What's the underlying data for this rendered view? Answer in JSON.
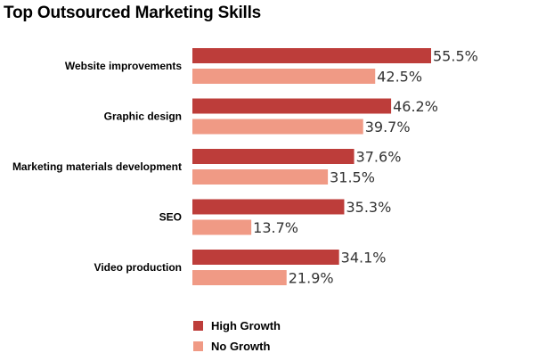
{
  "chart_data": {
    "type": "bar",
    "orientation": "horizontal",
    "title": "Top Outsourced Marketing Skills",
    "categories": [
      "Website improvements",
      "Graphic design",
      "Marketing materials development",
      "SEO",
      "Video production"
    ],
    "series": [
      {
        "name": "High Growth",
        "values": [
          55.5,
          46.2,
          37.6,
          35.3,
          34.1
        ],
        "color": "#bd3d3a"
      },
      {
        "name": "No Growth",
        "values": [
          42.5,
          39.7,
          31.5,
          13.7,
          21.9
        ],
        "color": "#f09a85"
      }
    ],
    "value_suffix": "%",
    "xlim": [
      0,
      55.5
    ],
    "grid": false,
    "legend": "bottom-left"
  }
}
